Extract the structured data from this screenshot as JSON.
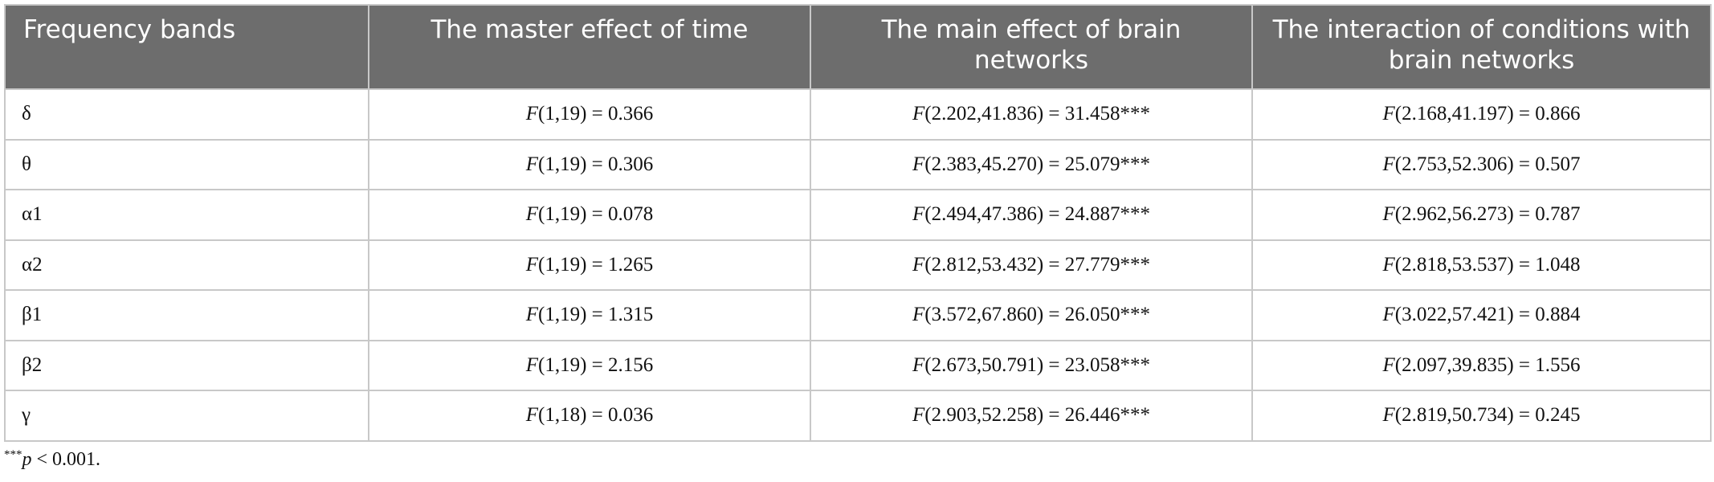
{
  "table": {
    "columns": [
      "Frequency bands",
      "The master effect of time",
      "The main effect of brain networks",
      "The interaction of conditions with brain networks"
    ],
    "rows": [
      {
        "band": "δ",
        "time": [
          "F",
          "(1,19) = 0.366"
        ],
        "networks": [
          "F",
          "(2.202,41.836) = 31.458***"
        ],
        "interaction": [
          "F",
          "(2.168,41.197) = 0.866"
        ]
      },
      {
        "band": "θ",
        "time": [
          "F",
          "(1,19) = 0.306"
        ],
        "networks": [
          "F",
          "(2.383,45.270) = 25.079***"
        ],
        "interaction": [
          "F",
          "(2.753,52.306) = 0.507"
        ]
      },
      {
        "band": "α1",
        "time": [
          "F",
          "(1,19) = 0.078"
        ],
        "networks": [
          "F",
          "(2.494,47.386) = 24.887***"
        ],
        "interaction": [
          "F",
          "(2.962,56.273) = 0.787"
        ]
      },
      {
        "band": "α2",
        "time": [
          "F",
          "(1,19) = 1.265"
        ],
        "networks": [
          "F",
          "(2.812,53.432) = 27.779***"
        ],
        "interaction": [
          "F",
          "(2.818,53.537) = 1.048"
        ]
      },
      {
        "band": "β1",
        "time": [
          "F",
          "(1,19) = 1.315"
        ],
        "networks": [
          "F",
          "(3.572,67.860) = 26.050***"
        ],
        "interaction": [
          "F",
          "(3.022,57.421) = 0.884"
        ]
      },
      {
        "band": "β2",
        "time": [
          "F",
          "(1,19) = 2.156"
        ],
        "networks": [
          "F",
          "(2.673,50.791) = 23.058***"
        ],
        "interaction": [
          "F",
          "(2.097,39.835) = 1.556"
        ]
      },
      {
        "band": "γ",
        "time": [
          "F",
          "(1,18) = 0.036"
        ],
        "networks": [
          "F",
          "(2.903,52.258) = 26.446***"
        ],
        "interaction": [
          "F",
          "(2.819,50.734) = 0.245"
        ]
      }
    ]
  },
  "footnote": {
    "marker": "***",
    "symbol": "p",
    "text": " < 0.001."
  }
}
